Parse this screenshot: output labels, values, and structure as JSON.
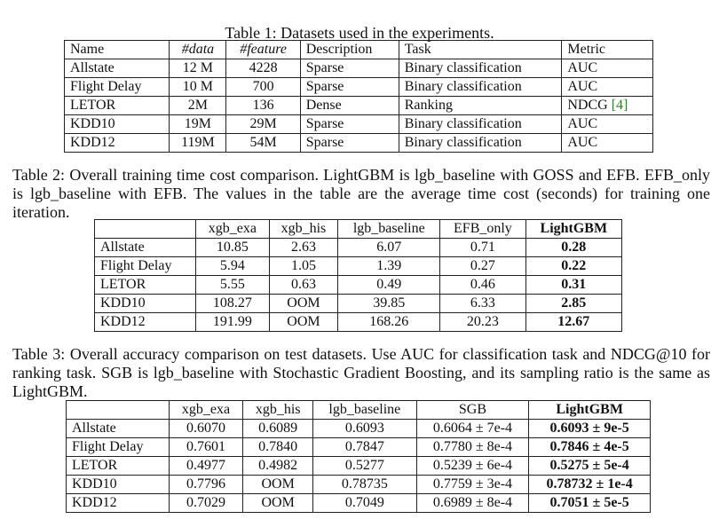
{
  "table1": {
    "caption": "Table 1: Datasets used in the experiments.",
    "headers": [
      "Name",
      "#data",
      "#feature",
      "Description",
      "Task",
      "Metric"
    ],
    "rows": [
      [
        "Allstate",
        "12 M",
        "4228",
        "Sparse",
        "Binary classification",
        "AUC"
      ],
      [
        "Flight Delay",
        "10 M",
        "700",
        "Sparse",
        "Binary classification",
        "AUC"
      ],
      [
        "LETOR",
        "2M",
        "136",
        "Dense",
        "Ranking",
        "NDCG"
      ],
      [
        "KDD10",
        "19M",
        "29M",
        "Sparse",
        "Binary classification",
        "AUC"
      ],
      [
        "KDD12",
        "119M",
        "54M",
        "Sparse",
        "Binary classification",
        "AUC"
      ]
    ],
    "citation": "[4]"
  },
  "table2": {
    "caption": "Table 2: Overall training time cost comparison. LightGBM is lgb_baseline with GOSS and EFB. EFB_only is lgb_baseline with EFB. The values in the table are the average time cost (seconds) for training one iteration.",
    "headers": [
      "",
      "xgb_exa",
      "xgb_his",
      "lgb_baseline",
      "EFB_only",
      "LightGBM"
    ],
    "rows": [
      [
        "Allstate",
        "10.85",
        "2.63",
        "6.07",
        "0.71",
        "0.28"
      ],
      [
        "Flight Delay",
        "5.94",
        "1.05",
        "1.39",
        "0.27",
        "0.22"
      ],
      [
        "LETOR",
        "5.55",
        "0.63",
        "0.49",
        "0.46",
        "0.31"
      ],
      [
        "KDD10",
        "108.27",
        "OOM",
        "39.85",
        "6.33",
        "2.85"
      ],
      [
        "KDD12",
        "191.99",
        "OOM",
        "168.26",
        "20.23",
        "12.67"
      ]
    ]
  },
  "table3": {
    "caption": "Table 3: Overall accuracy comparison on test datasets. Use AUC for classification task and NDCG@10 for ranking task. SGB is lgb_baseline with Stochastic Gradient Boosting, and its sampling ratio is the same as LightGBM.",
    "headers": [
      "",
      "xgb_exa",
      "xgb_his",
      "lgb_baseline",
      "SGB",
      "LightGBM"
    ],
    "rows": [
      [
        "Allstate",
        "0.6070",
        "0.6089",
        "0.6093",
        "0.6064 ± 7e-4",
        "0.6093 ± 9e-5"
      ],
      [
        "Flight Delay",
        "0.7601",
        "0.7840",
        "0.7847",
        "0.7780 ± 8e-4",
        "0.7846 ± 4e-5"
      ],
      [
        "LETOR",
        "0.4977",
        "0.4982",
        "0.5277",
        "0.5239 ± 6e-4",
        "0.5275 ± 5e-4"
      ],
      [
        "KDD10",
        "0.7796",
        "OOM",
        "0.78735",
        "0.7759 ± 3e-4",
        "0.78732 ± 1e-4"
      ],
      [
        "KDD12",
        "0.7029",
        "OOM",
        "0.7049",
        "0.6989 ± 8e-4",
        "0.7051 ± 5e-5"
      ]
    ]
  }
}
